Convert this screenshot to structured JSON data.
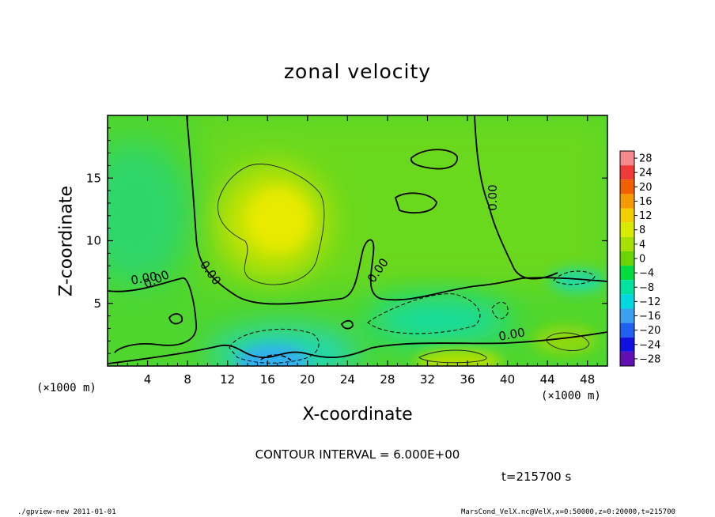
{
  "chart_data": {
    "type": "heatmap",
    "title": "zonal velocity",
    "xlabel": "X-coordinate",
    "ylabel": "Z-coordinate",
    "x_scale_label_left": "(×1000 m)",
    "x_scale_label_right": "(×1000 m)",
    "xlim": [
      0,
      50
    ],
    "ylim": [
      0,
      20
    ],
    "x_ticks": [
      4,
      8,
      12,
      16,
      20,
      24,
      28,
      32,
      36,
      40,
      44,
      48
    ],
    "y_ticks": [
      5,
      10,
      15
    ],
    "colorbar": {
      "levels": [
        28,
        24,
        20,
        16,
        12,
        8,
        4,
        0,
        -4,
        -8,
        -12,
        -16,
        -20,
        -24,
        -28
      ],
      "labels": [
        "28",
        "24",
        "20",
        "16",
        "12",
        "8",
        "4",
        "0",
        "−4",
        "−8",
        "−12",
        "−16",
        "−20",
        "−24",
        "−28"
      ],
      "colors": [
        "#f58a8a",
        "#f03a3a",
        "#f06000",
        "#f59a00",
        "#f2d000",
        "#d8ea00",
        "#a6e000",
        "#6ad400",
        "#00dc40",
        "#00e0a0",
        "#00d8e0",
        "#3aa0f0",
        "#2060f0",
        "#1010e0",
        "#6010b0"
      ]
    },
    "contour_interval": "CONTOUR INTERVAL = 6.000E+00",
    "contour_labels": [
      "0.00",
      "0.00",
      "0.00",
      "0.00",
      "0.00",
      "0.00"
    ],
    "features": [
      {
        "kind": "max",
        "x": 16.5,
        "z": 11.5,
        "value": 8
      },
      {
        "kind": "min",
        "x": 18.0,
        "z": 0.8,
        "value": -14
      },
      {
        "kind": "min",
        "x": 33.0,
        "z": 3.8,
        "value": -8
      },
      {
        "kind": "max",
        "x": 33.5,
        "z": 0.5,
        "value": 6
      }
    ],
    "time": "t=215700 s"
  },
  "footer": {
    "left": "./gpview-new  2011-01-01",
    "right": "MarsCond_VelX.nc@VelX,x=0:50000,z=0:20000,t=215700"
  }
}
